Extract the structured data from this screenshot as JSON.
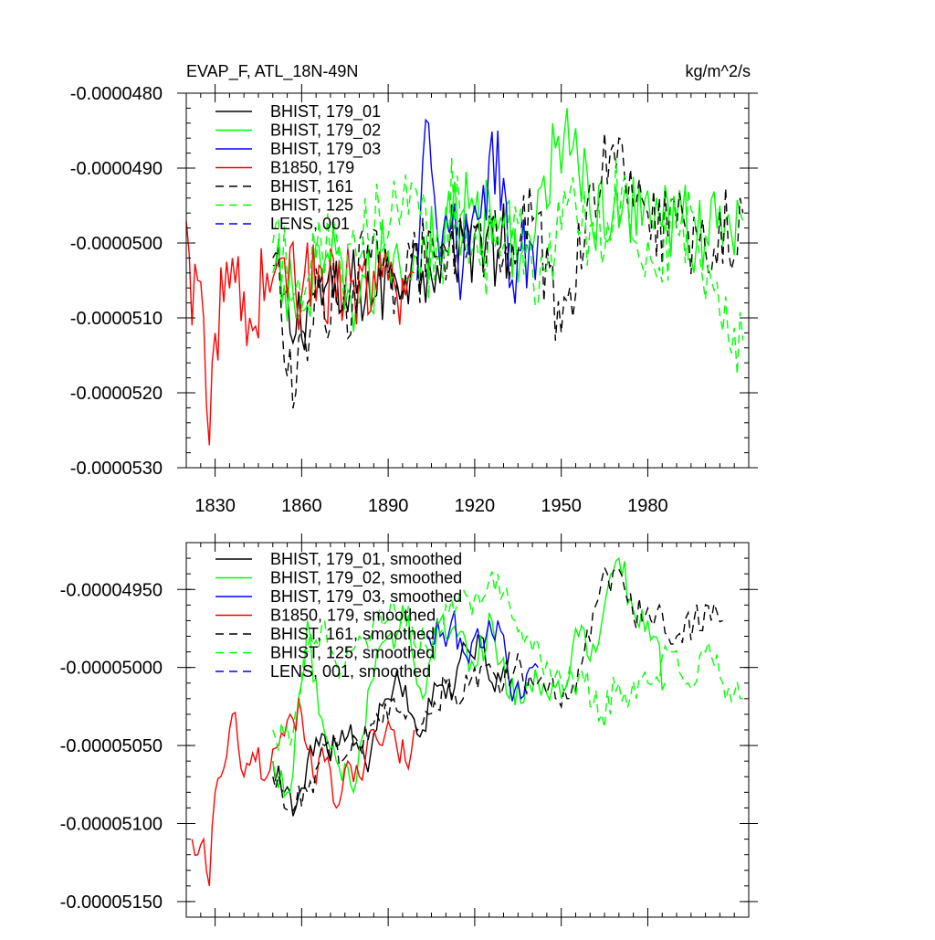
{
  "chart_data": [
    {
      "type": "line",
      "title": "EVAP_F, ATL_18N-49N",
      "units": "kg/m^2/s",
      "xlabel": "",
      "ylabel": "",
      "xlim": [
        1820,
        2015
      ],
      "ylim": [
        -5.3e-05,
        -4.8e-05
      ],
      "xticks": [
        1830,
        1860,
        1890,
        1920,
        1950,
        1980
      ],
      "xtick_labels": [
        "1830",
        "1860",
        "1890",
        "1920",
        "1950",
        "1980"
      ],
      "yticks": [
        -4.8e-05,
        -4.9e-05,
        -5e-05,
        -5.1e-05,
        -5.2e-05,
        -5.3e-05
      ],
      "ytick_labels": [
        "-0.0000480",
        "-0.0000490",
        "-0.0000500",
        "-0.0000510",
        "-0.0000520",
        "-0.0000530"
      ],
      "legend_position": "top-left",
      "series": [
        {
          "name": "BHIST, 179_01",
          "color": "#000000",
          "dash": "solid",
          "start": 1850,
          "end": 1932,
          "x": [
            1850,
            1856,
            1862,
            1868,
            1874,
            1880,
            1886,
            1892,
            1898,
            1904,
            1910,
            1916,
            1922,
            1928,
            1932
          ],
          "y": [
            -5.03e-05,
            -5.12e-05,
            -5.08e-05,
            -5.06e-05,
            -5.09e-05,
            -5.05e-05,
            -5.07e-05,
            -5.04e-05,
            -5.03e-05,
            -5.02e-05,
            -5.01e-05,
            -5e-05,
            -4.99e-05,
            -5.01e-05,
            -5e-05
          ]
        },
        {
          "name": "BHIST, 179_02",
          "color": "#00ff00",
          "dash": "solid",
          "start": 1850,
          "end": 2013,
          "x": [
            1850,
            1860,
            1870,
            1880,
            1890,
            1900,
            1910,
            1920,
            1930,
            1940,
            1952,
            1960,
            1970,
            1980,
            1990,
            2000,
            2013
          ],
          "y": [
            -5.04e-05,
            -5.09e-05,
            -5.03e-05,
            -5.08e-05,
            -5.01e-05,
            -5.02e-05,
            -4.97e-05,
            -4.96e-05,
            -4.98e-05,
            -5.01e-05,
            -4.82e-05,
            -4.96e-05,
            -4.98e-05,
            -4.93e-05,
            -4.97e-05,
            -4.99e-05,
            -4.97e-05
          ]
        },
        {
          "name": "BHIST, 179_03",
          "color": "#0000ff",
          "dash": "solid",
          "start": 1900,
          "end": 1942,
          "x": [
            1900,
            1904,
            1908,
            1912,
            1916,
            1920,
            1924,
            1928,
            1932,
            1936,
            1942
          ],
          "y": [
            -5.05e-05,
            -4.84e-05,
            -5.03e-05,
            -4.98e-05,
            -5.03e-05,
            -4.95e-05,
            -4.97e-05,
            -4.85e-05,
            -5.06e-05,
            -5.01e-05,
            -4.99e-05
          ]
        },
        {
          "name": "B1850, 179",
          "color": "#ff0000",
          "dash": "solid",
          "start": 1820,
          "end": 1899,
          "x": [
            1820,
            1822,
            1824,
            1826,
            1828,
            1830,
            1836,
            1842,
            1848,
            1854,
            1860,
            1866,
            1872,
            1878,
            1884,
            1890,
            1896,
            1899
          ],
          "y": [
            -4.97e-05,
            -5.11e-05,
            -5.05e-05,
            -5.1e-05,
            -5.27e-05,
            -5.12e-05,
            -5.02e-05,
            -5.1e-05,
            -5.04e-05,
            -5.02e-05,
            -5.07e-05,
            -5.03e-05,
            -5.08e-05,
            -5.05e-05,
            -5.09e-05,
            -5.05e-05,
            -5.07e-05,
            -5.04e-05
          ]
        },
        {
          "name": "BHIST, 161",
          "color": "#000000",
          "dash": "dashed",
          "start": 1850,
          "end": 2013,
          "x": [
            1850,
            1858,
            1866,
            1874,
            1882,
            1890,
            1900,
            1910,
            1920,
            1930,
            1940,
            1950,
            1960,
            1970,
            1980,
            1990,
            2000,
            2013
          ],
          "y": [
            -5.02e-05,
            -5.2e-05,
            -5.06e-05,
            -5.09e-05,
            -5.03e-05,
            -5.04e-05,
            -5.02e-05,
            -5.05e-05,
            -4.98e-05,
            -5.02e-05,
            -4.97e-05,
            -5.12e-05,
            -4.92e-05,
            -4.86e-05,
            -4.96e-05,
            -4.98e-05,
            -5.01e-05,
            -4.96e-05
          ]
        },
        {
          "name": "BHIST, 125",
          "color": "#00ff00",
          "dash": "dashed",
          "start": 1850,
          "end": 2013,
          "x": [
            1850,
            1858,
            1866,
            1874,
            1882,
            1890,
            1898,
            1906,
            1914,
            1922,
            1932,
            1942,
            1952,
            1962,
            1972,
            1982,
            1992,
            2002,
            2013
          ],
          "y": [
            -5e-05,
            -5.06e-05,
            -4.97e-05,
            -5.05e-05,
            -4.94e-05,
            -4.99e-05,
            -4.92e-05,
            -5.05e-05,
            -4.91e-05,
            -5.03e-05,
            -4.96e-05,
            -5.08e-05,
            -4.95e-05,
            -5e-05,
            -4.91e-05,
            -5.03e-05,
            -4.96e-05,
            -5.05e-05,
            -5.13e-05
          ]
        },
        {
          "name": "LENS, 001",
          "color": "#0000ff",
          "dash": "dashed",
          "start": 1920,
          "end": 1920,
          "x": [],
          "y": []
        }
      ]
    },
    {
      "type": "line",
      "title": "",
      "xlabel": "",
      "ylabel": "",
      "xlim": [
        1820,
        2015
      ],
      "ylim": [
        -5.16e-05,
        -4.92e-05
      ],
      "xticks": [
        1830,
        1860,
        1890,
        1920,
        1950,
        1980
      ],
      "xtick_labels": [
        "",
        "",
        "",
        "",
        "",
        ""
      ],
      "yticks": [
        -4.95e-05,
        -5e-05,
        -5.05e-05,
        -5.1e-05,
        -5.15e-05
      ],
      "ytick_labels": [
        "-0.00004950",
        "-0.00005000",
        "-0.00005050",
        "-0.00005100",
        "-0.00005150"
      ],
      "legend_position": "top-left",
      "series": [
        {
          "name": "BHIST, 179_01, smoothed",
          "color": "#000000",
          "dash": "solid",
          "x": [
            1850,
            1854,
            1858,
            1862,
            1866,
            1870,
            1874,
            1878,
            1882,
            1886,
            1890,
            1894,
            1898,
            1902,
            1906,
            1910,
            1914,
            1918,
            1922,
            1926,
            1930,
            1932
          ],
          "y": [
            -5.06e-05,
            -5.08e-05,
            -5.09e-05,
            -5.06e-05,
            -5.05e-05,
            -5.06e-05,
            -5.04e-05,
            -5.05e-05,
            -5.06e-05,
            -5.04e-05,
            -5.02e-05,
            -5.01e-05,
            -5.03e-05,
            -5.04e-05,
            -5.01e-05,
            -5.02e-05,
            -5e-05,
            -4.99e-05,
            -4.98e-05,
            -5.01e-05,
            -5e-05,
            -4.99e-05
          ]
        },
        {
          "name": "BHIST, 179_02, smoothed",
          "color": "#00ff00",
          "dash": "solid",
          "x": [
            1850,
            1856,
            1862,
            1866,
            1872,
            1878,
            1884,
            1890,
            1896,
            1902,
            1908,
            1914,
            1920,
            1926,
            1932,
            1938,
            1944,
            1950,
            1956,
            1962,
            1966,
            1970,
            1976,
            1982,
            1986
          ],
          "y": [
            -5.06e-05,
            -5.08e-05,
            -4.97e-05,
            -5.03e-05,
            -5.06e-05,
            -5.08e-05,
            -5.01e-05,
            -4.98e-05,
            -4.97e-05,
            -5.02e-05,
            -4.97e-05,
            -4.98e-05,
            -5e-05,
            -4.97e-05,
            -5.02e-05,
            -5.01e-05,
            -5.01e-05,
            -5.02e-05,
            -4.98e-05,
            -4.99e-05,
            -4.95e-05,
            -4.93e-05,
            -4.97e-05,
            -4.98e-05,
            -5.01e-05
          ]
        },
        {
          "name": "BHIST, 179_03, smoothed",
          "color": "#0000ff",
          "dash": "solid",
          "x": [
            1904,
            1908,
            1912,
            1916,
            1920,
            1924,
            1928,
            1932,
            1936,
            1940,
            1942
          ],
          "y": [
            -4.98e-05,
            -4.98e-05,
            -4.97e-05,
            -4.99e-05,
            -4.98e-05,
            -4.98e-05,
            -4.97e-05,
            -5.01e-05,
            -5.02e-05,
            -5e-05,
            -5e-05
          ]
        },
        {
          "name": "B1850, 179, smoothed",
          "color": "#ff0000",
          "dash": "solid",
          "x": [
            1822,
            1824,
            1826,
            1828,
            1830,
            1832,
            1836,
            1840,
            1844,
            1848,
            1852,
            1856,
            1860,
            1864,
            1868,
            1872,
            1876,
            1880,
            1884,
            1888,
            1892,
            1896,
            1899
          ],
          "y": [
            -5.11e-05,
            -5.12e-05,
            -5.11e-05,
            -5.14e-05,
            -5.08e-05,
            -5.07e-05,
            -5.03e-05,
            -5.07e-05,
            -5.06e-05,
            -5.07e-05,
            -5.05e-05,
            -5.03e-05,
            -5.03e-05,
            -5.07e-05,
            -5.06e-05,
            -5.09e-05,
            -5.06e-05,
            -5.07e-05,
            -5.04e-05,
            -5.05e-05,
            -5.04e-05,
            -5.06e-05,
            -5.04e-05
          ]
        },
        {
          "name": "BHIST, 161, smoothed",
          "color": "#000000",
          "dash": "dashed",
          "x": [
            1850,
            1856,
            1862,
            1868,
            1874,
            1880,
            1886,
            1892,
            1898,
            1904,
            1910,
            1916,
            1922,
            1928,
            1934,
            1940,
            1946,
            1952,
            1958,
            1962,
            1966,
            1972,
            1978,
            1984,
            1990,
            1996,
            2002,
            2006
          ],
          "y": [
            -5.07e-05,
            -5.09e-05,
            -5.08e-05,
            -5.05e-05,
            -5.06e-05,
            -5.05e-05,
            -5.03e-05,
            -5.02e-05,
            -5.03e-05,
            -5.03e-05,
            -5.01e-05,
            -5.02e-05,
            -5e-05,
            -5.01e-05,
            -5e-05,
            -5.01e-05,
            -5.01e-05,
            -5.02e-05,
            -4.99e-05,
            -4.96e-05,
            -4.94e-05,
            -4.95e-05,
            -4.97e-05,
            -4.96e-05,
            -4.98e-05,
            -4.97e-05,
            -4.97e-05,
            -4.97e-05
          ]
        },
        {
          "name": "BHIST, 125, smoothed",
          "color": "#00ff00",
          "dash": "dashed",
          "x": [
            1850,
            1856,
            1862,
            1868,
            1874,
            1880,
            1886,
            1892,
            1898,
            1904,
            1910,
            1916,
            1922,
            1928,
            1934,
            1940,
            1946,
            1952,
            1958,
            1964,
            1970,
            1976,
            1982,
            1988,
            1994,
            2000,
            2006,
            2013
          ],
          "y": [
            -5.04e-05,
            -5.05e-05,
            -4.99e-05,
            -4.97e-05,
            -5e-05,
            -4.98e-05,
            -4.97e-05,
            -4.96e-05,
            -4.97e-05,
            -4.99e-05,
            -4.96e-05,
            -4.95e-05,
            -4.96e-05,
            -4.94e-05,
            -4.97e-05,
            -4.99e-05,
            -5e-05,
            -5.01e-05,
            -5.01e-05,
            -5.03e-05,
            -5.01e-05,
            -5.02e-05,
            -5.01e-05,
            -4.99e-05,
            -5.01e-05,
            -4.99e-05,
            -5.01e-05,
            -5.02e-05
          ]
        },
        {
          "name": "LENS, 001, smoothed",
          "color": "#0000ff",
          "dash": "dashed",
          "x": [],
          "y": []
        }
      ]
    }
  ]
}
